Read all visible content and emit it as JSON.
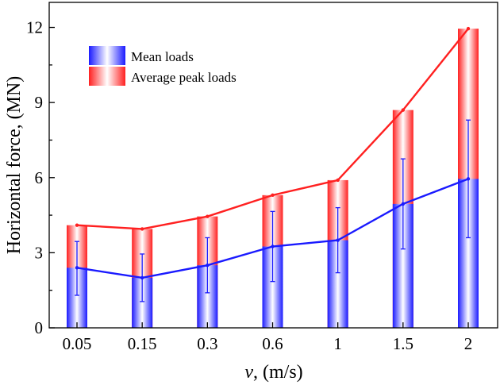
{
  "chart_data": {
    "type": "bar",
    "categories": [
      "0.05",
      "0.15",
      "0.3",
      "0.6",
      "1",
      "1.5",
      "2"
    ],
    "series": [
      {
        "name": "Mean loads",
        "color": "#1a1aff",
        "values": [
          2.4,
          2.0,
          2.5,
          3.25,
          3.5,
          4.95,
          5.95
        ],
        "error_low": [
          1.3,
          1.05,
          1.4,
          1.85,
          2.2,
          3.15,
          3.6
        ],
        "error_high": [
          3.45,
          2.95,
          3.6,
          4.65,
          4.8,
          6.75,
          8.3
        ]
      },
      {
        "name": "Average peak loads",
        "color": "#ff2020",
        "values": [
          4.1,
          3.95,
          4.45,
          5.3,
          5.9,
          8.7,
          11.95
        ]
      }
    ],
    "xlabel_var": "v",
    "xlabel_unit": ", (m/s)",
    "ylabel": "Horizontal force, (MN)",
    "ylim": [
      0,
      13
    ],
    "yticks": [
      "0",
      "3",
      "6",
      "9",
      "12"
    ],
    "ytick_values": [
      0,
      3,
      6,
      9,
      12
    ],
    "legend_position": "top-left"
  }
}
